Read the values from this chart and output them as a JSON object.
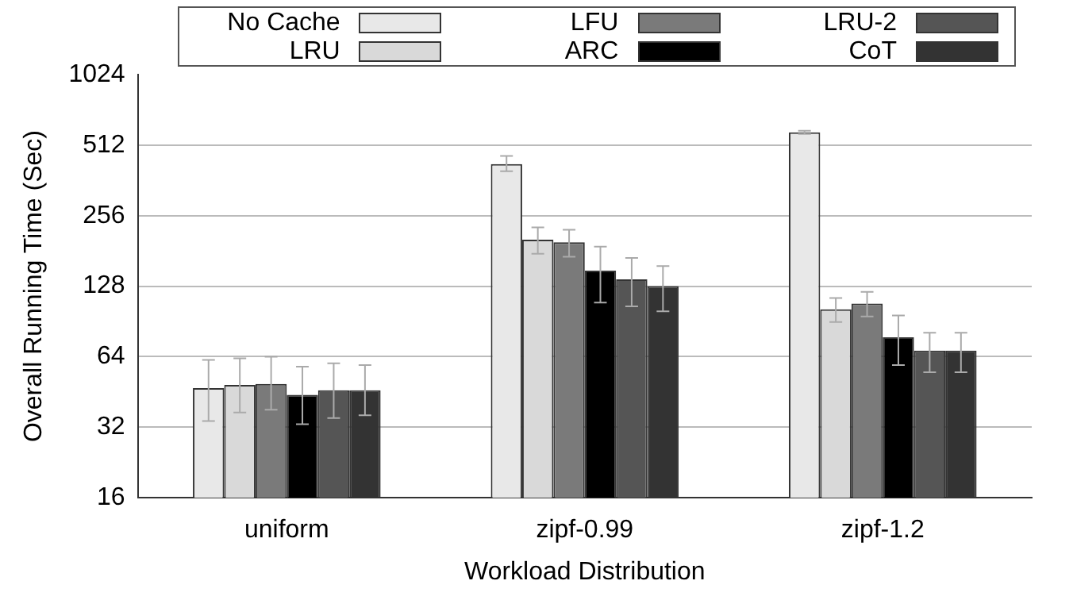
{
  "chart_data": {
    "type": "bar",
    "xlabel": "Workload Distribution",
    "ylabel": "Overall Running Time (Sec)",
    "categories": [
      "uniform",
      "zipf-0.99",
      "zipf-1.2"
    ],
    "series": [
      {
        "name": "No Cache",
        "color": "#e8e8e8",
        "values": [
          47,
          425,
          581
        ],
        "errors": [
          [
            34,
            62
          ],
          [
            396,
            460
          ],
          [
            572,
            590
          ]
        ]
      },
      {
        "name": "LRU",
        "color": "#d9d9d9",
        "values": [
          48.5,
          202,
          102
        ],
        "errors": [
          [
            37,
            63
          ],
          [
            176,
            228
          ],
          [
            90,
            114
          ]
        ]
      },
      {
        "name": "LFU",
        "color": "#7a7a7a",
        "values": [
          49,
          197,
          108
        ],
        "errors": [
          [
            38,
            64
          ],
          [
            171,
            223
          ],
          [
            95,
            121
          ]
        ]
      },
      {
        "name": "ARC",
        "color": "#000000",
        "values": [
          44,
          149,
          77.5
        ],
        "errors": [
          [
            33,
            58
          ],
          [
            109,
            189
          ],
          [
            59,
            96
          ]
        ]
      },
      {
        "name": "LRU-2",
        "color": "#555555",
        "values": [
          46,
          137,
          68
        ],
        "errors": [
          [
            35,
            60
          ],
          [
            105,
            169
          ],
          [
            55,
            81
          ]
        ]
      },
      {
        "name": "CoT",
        "color": "#333333",
        "values": [
          46,
          128,
          68
        ],
        "errors": [
          [
            36,
            59
          ],
          [
            100,
            156
          ],
          [
            55,
            81
          ]
        ]
      }
    ],
    "log": "y",
    "ylim": [
      16,
      1024
    ],
    "yticks": [
      16,
      32,
      64,
      128,
      256,
      512,
      1024
    ],
    "grid": "y",
    "legend": "top"
  }
}
